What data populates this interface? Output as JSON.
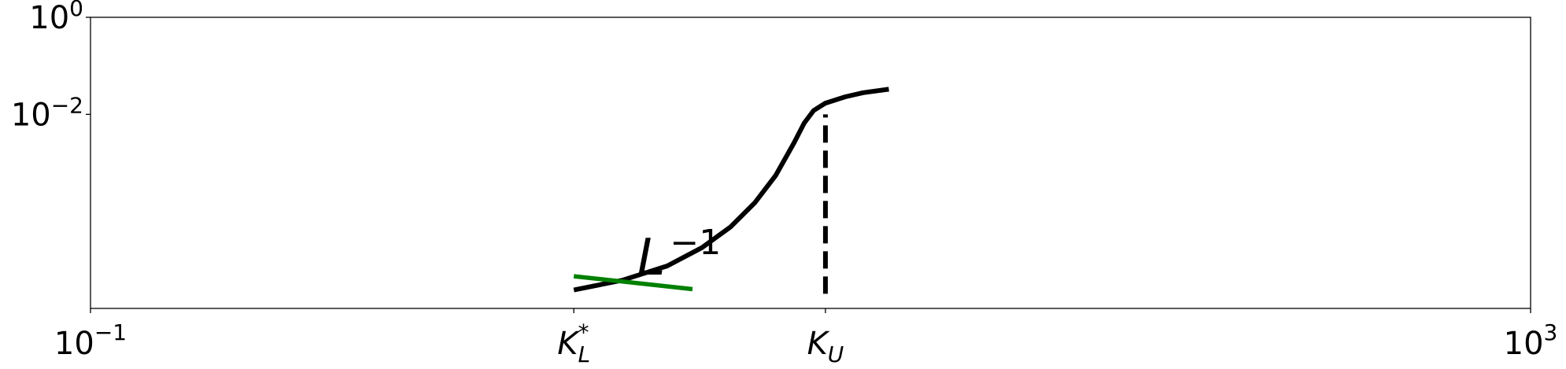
{
  "chart_data": {
    "type": "line",
    "xscale": "log",
    "yscale": "log",
    "xlim": [
      0.1,
      1000
    ],
    "ylim": [
      1e-06,
      1
    ],
    "x_ticks": [
      {
        "base": "10",
        "exp": "−1",
        "value": 0.1
      },
      {
        "base": "K",
        "sup": "*",
        "sub": "L",
        "value": 2.2
      },
      {
        "base": "K",
        "sub": "U",
        "value": 11
      },
      {
        "base": "10",
        "exp": "3",
        "value": 1000
      }
    ],
    "y_ticks": [
      {
        "base": "10",
        "exp": "0",
        "value": 1
      },
      {
        "base": "10",
        "exp": "−2",
        "value": 0.01
      }
    ],
    "series": [
      {
        "color": "#000000",
        "style": "solid",
        "x": [
          2.2,
          3.0,
          4.0,
          5.0,
          6.0,
          7.0,
          8.0,
          9.0,
          9.6,
          10.2,
          11.0,
          12.5,
          14.0,
          16.5
        ],
        "y": [
          2.4e-06,
          3.8e-06,
          7.5e-06,
          1.8e-05,
          4.8e-05,
          0.00015,
          0.00055,
          0.0026,
          0.0066,
          0.012,
          0.017,
          0.023,
          0.028,
          0.033
        ]
      },
      {
        "color": "#008000",
        "style": "solid",
        "x": [
          2.2,
          4.7
        ],
        "y": [
          4.6e-06,
          2.5e-06
        ]
      }
    ],
    "vlines": [
      {
        "x": 11,
        "y_from": 2e-06,
        "y_to": 0.01,
        "style": "dashed",
        "color": "#000000"
      }
    ],
    "annotations": [
      {
        "text": "L",
        "sup": "−1",
        "x": 3.3,
        "y": 4e-06
      }
    ],
    "grid": false,
    "legend": "none"
  }
}
